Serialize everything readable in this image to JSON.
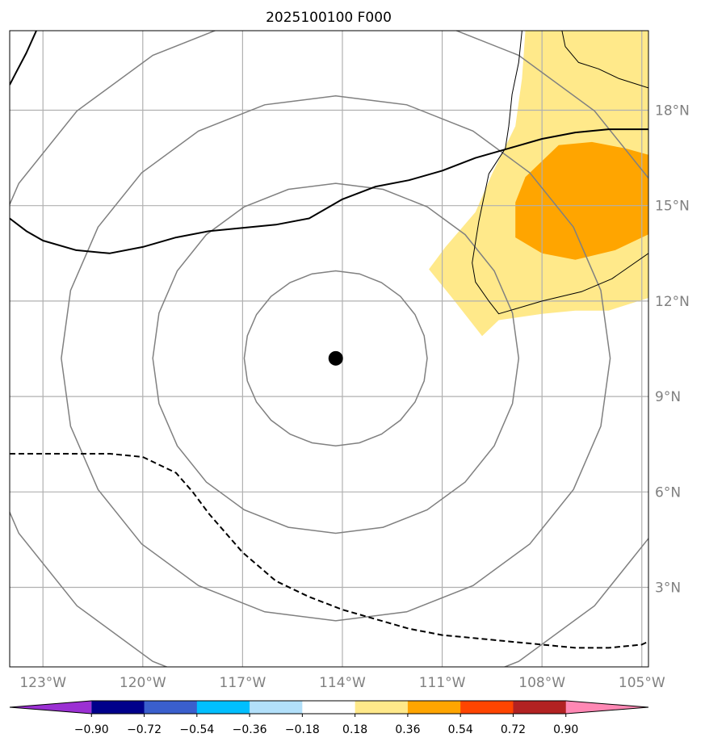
{
  "chart_data": {
    "type": "map-contour",
    "title": "2025100100 F000",
    "projection": "PlateCarree",
    "lon_range": [
      -124.0,
      -104.8
    ],
    "lat_range": [
      0.5,
      20.5
    ],
    "xticks": [
      -123,
      -120,
      -117,
      -114,
      -111,
      -108,
      -105
    ],
    "xtick_labels": [
      "123°W",
      "120°W",
      "117°W",
      "114°W",
      "111°W",
      "108°W",
      "105°W"
    ],
    "yticks": [
      3,
      6,
      9,
      12,
      15,
      18
    ],
    "ytick_labels": [
      "3°N",
      "6°N",
      "9°N",
      "12°N",
      "15°N",
      "18°N"
    ],
    "grid": true,
    "center": {
      "lon": -114.2,
      "lat": 10.2
    },
    "range_rings_deg": [
      2.75,
      5.5,
      8.25,
      11.0
    ],
    "ring_color": "#808080",
    "colorbar": {
      "orientation": "horizontal",
      "extend": "both",
      "boundaries": [
        -0.9,
        -0.72,
        -0.54,
        -0.36,
        -0.18,
        0.18,
        0.36,
        0.54,
        0.72,
        0.9
      ],
      "tick_labels": [
        "−0.90",
        "−0.72",
        "−0.54",
        "−0.36",
        "−0.18",
        "0.18",
        "0.36",
        "0.54",
        "0.72",
        "0.90"
      ],
      "colors": [
        "#9b30d3",
        "#00008b",
        "#3a5fcd",
        "#00bfff",
        "#b2e0fa",
        "#ffffff",
        "#ffe98a",
        "#ffa500",
        "#ff4500",
        "#b22222",
        "#ff88b4"
      ]
    },
    "filled_regions": [
      {
        "level": "0.18–0.36",
        "color": "#ffe98a",
        "polygon": [
          [
            -108.5,
            20.5
          ],
          [
            -104.8,
            20.5
          ],
          [
            -104.8,
            12.1
          ],
          [
            -106.0,
            11.7
          ],
          [
            -107.0,
            11.7
          ],
          [
            -108.0,
            11.6
          ],
          [
            -109.3,
            11.4
          ],
          [
            -109.8,
            10.9
          ],
          [
            -110.7,
            12.1
          ],
          [
            -111.4,
            13.0
          ],
          [
            -110.9,
            13.7
          ],
          [
            -110.0,
            14.8
          ],
          [
            -109.5,
            16.0
          ],
          [
            -108.8,
            17.5
          ],
          [
            -108.6,
            19.0
          ]
        ]
      },
      {
        "level": "0.36–0.54",
        "color": "#ffa500",
        "polygon": [
          [
            -107.5,
            16.9
          ],
          [
            -106.5,
            17.0
          ],
          [
            -105.5,
            16.8
          ],
          [
            -104.8,
            16.6
          ],
          [
            -104.8,
            14.1
          ],
          [
            -105.8,
            13.6
          ],
          [
            -107.0,
            13.3
          ],
          [
            -108.0,
            13.5
          ],
          [
            -108.8,
            14.0
          ],
          [
            -108.8,
            15.1
          ],
          [
            -108.5,
            15.9
          ]
        ]
      }
    ],
    "lines": [
      {
        "name": "coastline-baja",
        "style": "solid",
        "width": 1,
        "points": [
          [
            -108.6,
            20.5
          ],
          [
            -108.7,
            19.5
          ],
          [
            -108.9,
            18.5
          ],
          [
            -109.0,
            17.5
          ],
          [
            -109.1,
            16.8
          ],
          [
            -109.6,
            16.0
          ],
          [
            -109.9,
            14.5
          ],
          [
            -110.1,
            13.2
          ],
          [
            -110.0,
            12.6
          ],
          [
            -109.6,
            12.0
          ],
          [
            -109.3,
            11.6
          ],
          [
            -108.0,
            12.0
          ],
          [
            -106.8,
            12.3
          ],
          [
            -105.9,
            12.7
          ],
          [
            -104.8,
            13.5
          ]
        ]
      },
      {
        "name": "coastline-mainland",
        "style": "solid",
        "width": 1,
        "points": [
          [
            -107.4,
            20.5
          ],
          [
            -107.3,
            20.0
          ],
          [
            -106.9,
            19.5
          ],
          [
            -106.3,
            19.3
          ],
          [
            -105.7,
            19.0
          ],
          [
            -104.8,
            18.7
          ]
        ]
      },
      {
        "name": "bold-line",
        "style": "solid",
        "width": 2,
        "points": [
          [
            -124.0,
            14.6
          ],
          [
            -123.5,
            14.2
          ],
          [
            -123.0,
            13.9
          ],
          [
            -122.0,
            13.6
          ],
          [
            -121.0,
            13.5
          ],
          [
            -120.0,
            13.7
          ],
          [
            -119.0,
            14.0
          ],
          [
            -118.0,
            14.2
          ],
          [
            -117.0,
            14.3
          ],
          [
            -116.0,
            14.4
          ],
          [
            -115.0,
            14.6
          ],
          [
            -114.0,
            15.2
          ],
          [
            -113.0,
            15.6
          ],
          [
            -112.0,
            15.8
          ],
          [
            -111.0,
            16.1
          ],
          [
            -110.0,
            16.5
          ],
          [
            -109.0,
            16.8
          ],
          [
            -108.0,
            17.1
          ],
          [
            -107.0,
            17.3
          ],
          [
            -106.0,
            17.4
          ],
          [
            -104.8,
            17.4
          ]
        ]
      },
      {
        "name": "bold-line-nw",
        "style": "solid",
        "width": 2,
        "points": [
          [
            -124.0,
            18.8
          ],
          [
            -123.8,
            19.2
          ],
          [
            -123.5,
            19.8
          ],
          [
            -123.2,
            20.5
          ]
        ]
      },
      {
        "name": "dashed-line",
        "style": "dashed",
        "width": 2,
        "points": [
          [
            -124.0,
            7.2
          ],
          [
            -123.0,
            7.2
          ],
          [
            -122.0,
            7.2
          ],
          [
            -121.0,
            7.2
          ],
          [
            -120.0,
            7.1
          ],
          [
            -119.0,
            6.6
          ],
          [
            -118.5,
            6.0
          ],
          [
            -118.0,
            5.3
          ],
          [
            -117.5,
            4.7
          ],
          [
            -117.0,
            4.1
          ],
          [
            -116.0,
            3.2
          ],
          [
            -115.0,
            2.7
          ],
          [
            -114.0,
            2.3
          ],
          [
            -113.0,
            2.0
          ],
          [
            -112.0,
            1.7
          ],
          [
            -111.0,
            1.5
          ],
          [
            -110.0,
            1.4
          ],
          [
            -109.0,
            1.3
          ],
          [
            -108.0,
            1.2
          ],
          [
            -107.0,
            1.1
          ],
          [
            -106.0,
            1.1
          ],
          [
            -105.0,
            1.2
          ],
          [
            -104.8,
            1.3
          ]
        ]
      }
    ]
  }
}
